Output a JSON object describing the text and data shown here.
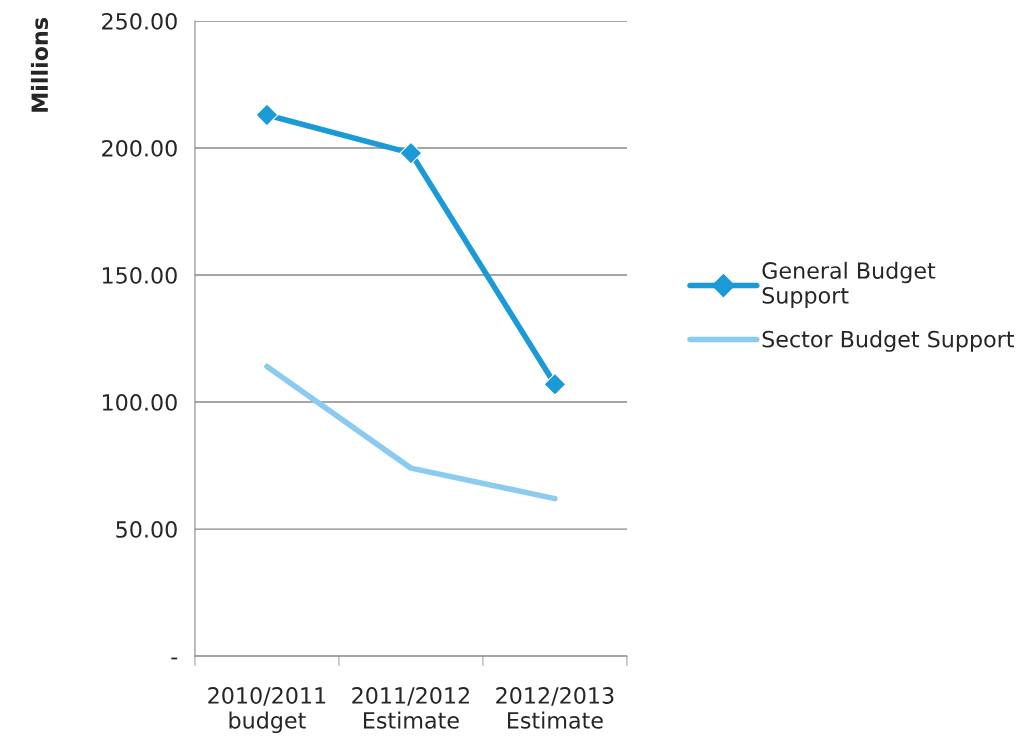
{
  "chart_data": {
    "type": "line",
    "ylabel": "Millions",
    "categories": [
      "2010/2011\nbudget",
      "2011/2012\nEstimate",
      "2012/2013\nEstimate"
    ],
    "series": [
      {
        "name": "General Budget\nSupport",
        "color": "#1a9ad6",
        "marker": "diamond",
        "values": [
          213,
          198,
          107
        ]
      },
      {
        "name": "Sector Budget Support",
        "color": "#8ccbf0",
        "marker": "none",
        "values": [
          114,
          74,
          62
        ]
      }
    ],
    "ylim": [
      0,
      250
    ],
    "yticks": [
      {
        "value": 0,
        "label": "-"
      },
      {
        "value": 50,
        "label": "50.00"
      },
      {
        "value": 100,
        "label": "100.00"
      },
      {
        "value": 150,
        "label": "150.00"
      },
      {
        "value": 200,
        "label": "200.00"
      },
      {
        "value": 250,
        "label": "250.00"
      }
    ],
    "grid": "y",
    "legend": "right",
    "line_style": "solid"
  }
}
